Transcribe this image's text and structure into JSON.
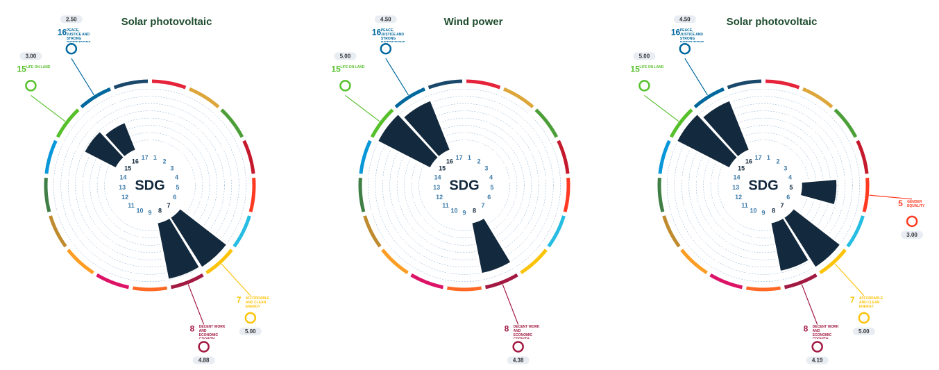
{
  "sdg_colors": [
    "#e5243b",
    "#dda63a",
    "#4c9f38",
    "#c5192d",
    "#ff3a21",
    "#26bde2",
    "#fcc30b",
    "#a21942",
    "#fd6925",
    "#dd1367",
    "#fd9d24",
    "#bf8b2e",
    "#3f7e44",
    "#0a97d9",
    "#56c02b",
    "#00689d",
    "#19486a"
  ],
  "chart_data": [
    {
      "type": "polar_bar",
      "title": "Solar photovoltaic",
      "center_label": "SDG",
      "color": "#13293d",
      "ylim": [
        0,
        5
      ],
      "categories": [
        "1",
        "2",
        "3",
        "4",
        "5",
        "6",
        "7",
        "8",
        "9",
        "10",
        "11",
        "12",
        "13",
        "14",
        "15",
        "16",
        "17"
      ],
      "values": [
        null,
        null,
        null,
        null,
        null,
        null,
        5,
        4.88,
        null,
        null,
        null,
        null,
        null,
        null,
        3,
        2.5,
        null
      ],
      "value_labels": [
        null,
        null,
        null,
        null,
        null,
        null,
        "5.00",
        "4.88",
        null,
        null,
        null,
        null,
        null,
        null,
        "3.00",
        "2.50",
        null
      ],
      "goal_names": [
        null,
        null,
        null,
        null,
        null,
        null,
        "AFFORDABLE AND CLEAN ENERGY",
        "DECENT WORK AND ECONOMIC GROWTH",
        null,
        null,
        null,
        null,
        null,
        null,
        "LIFE ON LAND",
        "PEACE, JUSTICE AND STRONG INSTITUTIONS",
        null
      ]
    },
    {
      "type": "polar_bar",
      "title": "Wind power",
      "center_label": "SDG",
      "color": "#13293d",
      "ylim": [
        0,
        5
      ],
      "categories": [
        "1",
        "2",
        "3",
        "4",
        "5",
        "6",
        "7",
        "8",
        "9",
        "10",
        "11",
        "12",
        "13",
        "14",
        "15",
        "16",
        "17"
      ],
      "values": [
        null,
        null,
        null,
        null,
        null,
        null,
        null,
        4.38,
        null,
        null,
        null,
        null,
        null,
        null,
        5,
        4.5,
        null
      ],
      "value_labels": [
        null,
        null,
        null,
        null,
        null,
        null,
        null,
        "4.38",
        null,
        null,
        null,
        null,
        null,
        null,
        "5.00",
        "4.50",
        null
      ],
      "goal_names": [
        null,
        null,
        null,
        null,
        null,
        null,
        null,
        "DECENT WORK AND ECONOMIC GROWTH",
        null,
        null,
        null,
        null,
        null,
        null,
        "LIFE ON LAND",
        "PEACE, JUSTICE AND STRONG INSTITUTIONS",
        null
      ]
    },
    {
      "type": "polar_bar",
      "title": "Solar photovoltaic",
      "center_label": "SDG",
      "color": "#13293d",
      "ylim": [
        0,
        5
      ],
      "categories": [
        "1",
        "2",
        "3",
        "4",
        "5",
        "6",
        "7",
        "8",
        "9",
        "10",
        "11",
        "12",
        "13",
        "14",
        "15",
        "16",
        "17"
      ],
      "values": [
        null,
        null,
        null,
        null,
        3,
        null,
        5,
        4.19,
        null,
        null,
        null,
        null,
        null,
        null,
        5,
        4.5,
        null
      ],
      "value_labels": [
        null,
        null,
        null,
        null,
        "3.00",
        null,
        "5.00",
        "4.19",
        null,
        null,
        null,
        null,
        null,
        null,
        "5.00",
        "4.50",
        null
      ],
      "goal_names": [
        null,
        null,
        null,
        null,
        "GENDER EQUALITY",
        null,
        "AFFORDABLE AND CLEAN ENERGY",
        "DECENT WORK AND ECONOMIC GROWTH",
        null,
        null,
        null,
        null,
        null,
        null,
        "LIFE ON LAND",
        "PEACE, JUSTICE AND STRONG INSTITUTIONS",
        null
      ]
    }
  ]
}
